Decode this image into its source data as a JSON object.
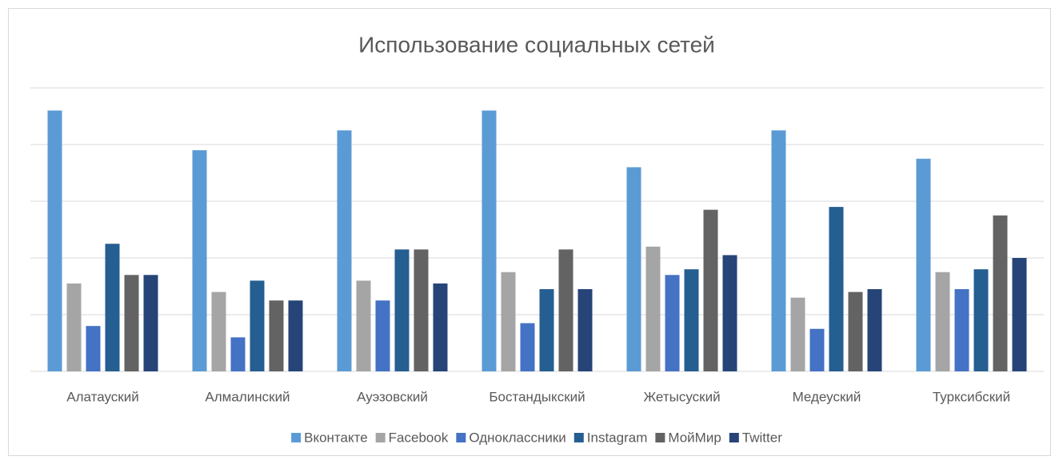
{
  "chart_data": {
    "type": "bar",
    "title": "Использование социальных сетей",
    "categories": [
      "Алатауский",
      "Алмалинский",
      "Ауэзовский",
      "Бостандыкский",
      "Жетысуский",
      "Медеуский",
      "Турксибский"
    ],
    "series": [
      {
        "name": "Вконтакте",
        "color": "#5b9bd5",
        "values": [
          46,
          39,
          42.5,
          46,
          36,
          42.5,
          37.5
        ]
      },
      {
        "name": "Facebook",
        "color": "#a5a5a5",
        "values": [
          15.5,
          14,
          16,
          17.5,
          22,
          13,
          17.5
        ]
      },
      {
        "name": "Одноклассники",
        "color": "#4472c4",
        "values": [
          8,
          6,
          12.5,
          8.5,
          17,
          7.5,
          14.5
        ]
      },
      {
        "name": "Instagram",
        "color": "#255e91",
        "values": [
          22.5,
          16,
          21.5,
          14.5,
          18,
          29,
          18
        ]
      },
      {
        "name": "МойМир",
        "color": "#636363",
        "values": [
          17,
          12.5,
          21.5,
          21.5,
          28.5,
          14,
          27.5
        ]
      },
      {
        "name": "Twitter",
        "color": "#264478",
        "values": [
          17,
          12.5,
          15.5,
          14.5,
          20.5,
          14.5,
          20
        ]
      }
    ],
    "ylim": [
      0,
      50
    ],
    "yticks": [
      0,
      10,
      20,
      30,
      40,
      50
    ],
    "grid": true,
    "legend": "bottom"
  }
}
